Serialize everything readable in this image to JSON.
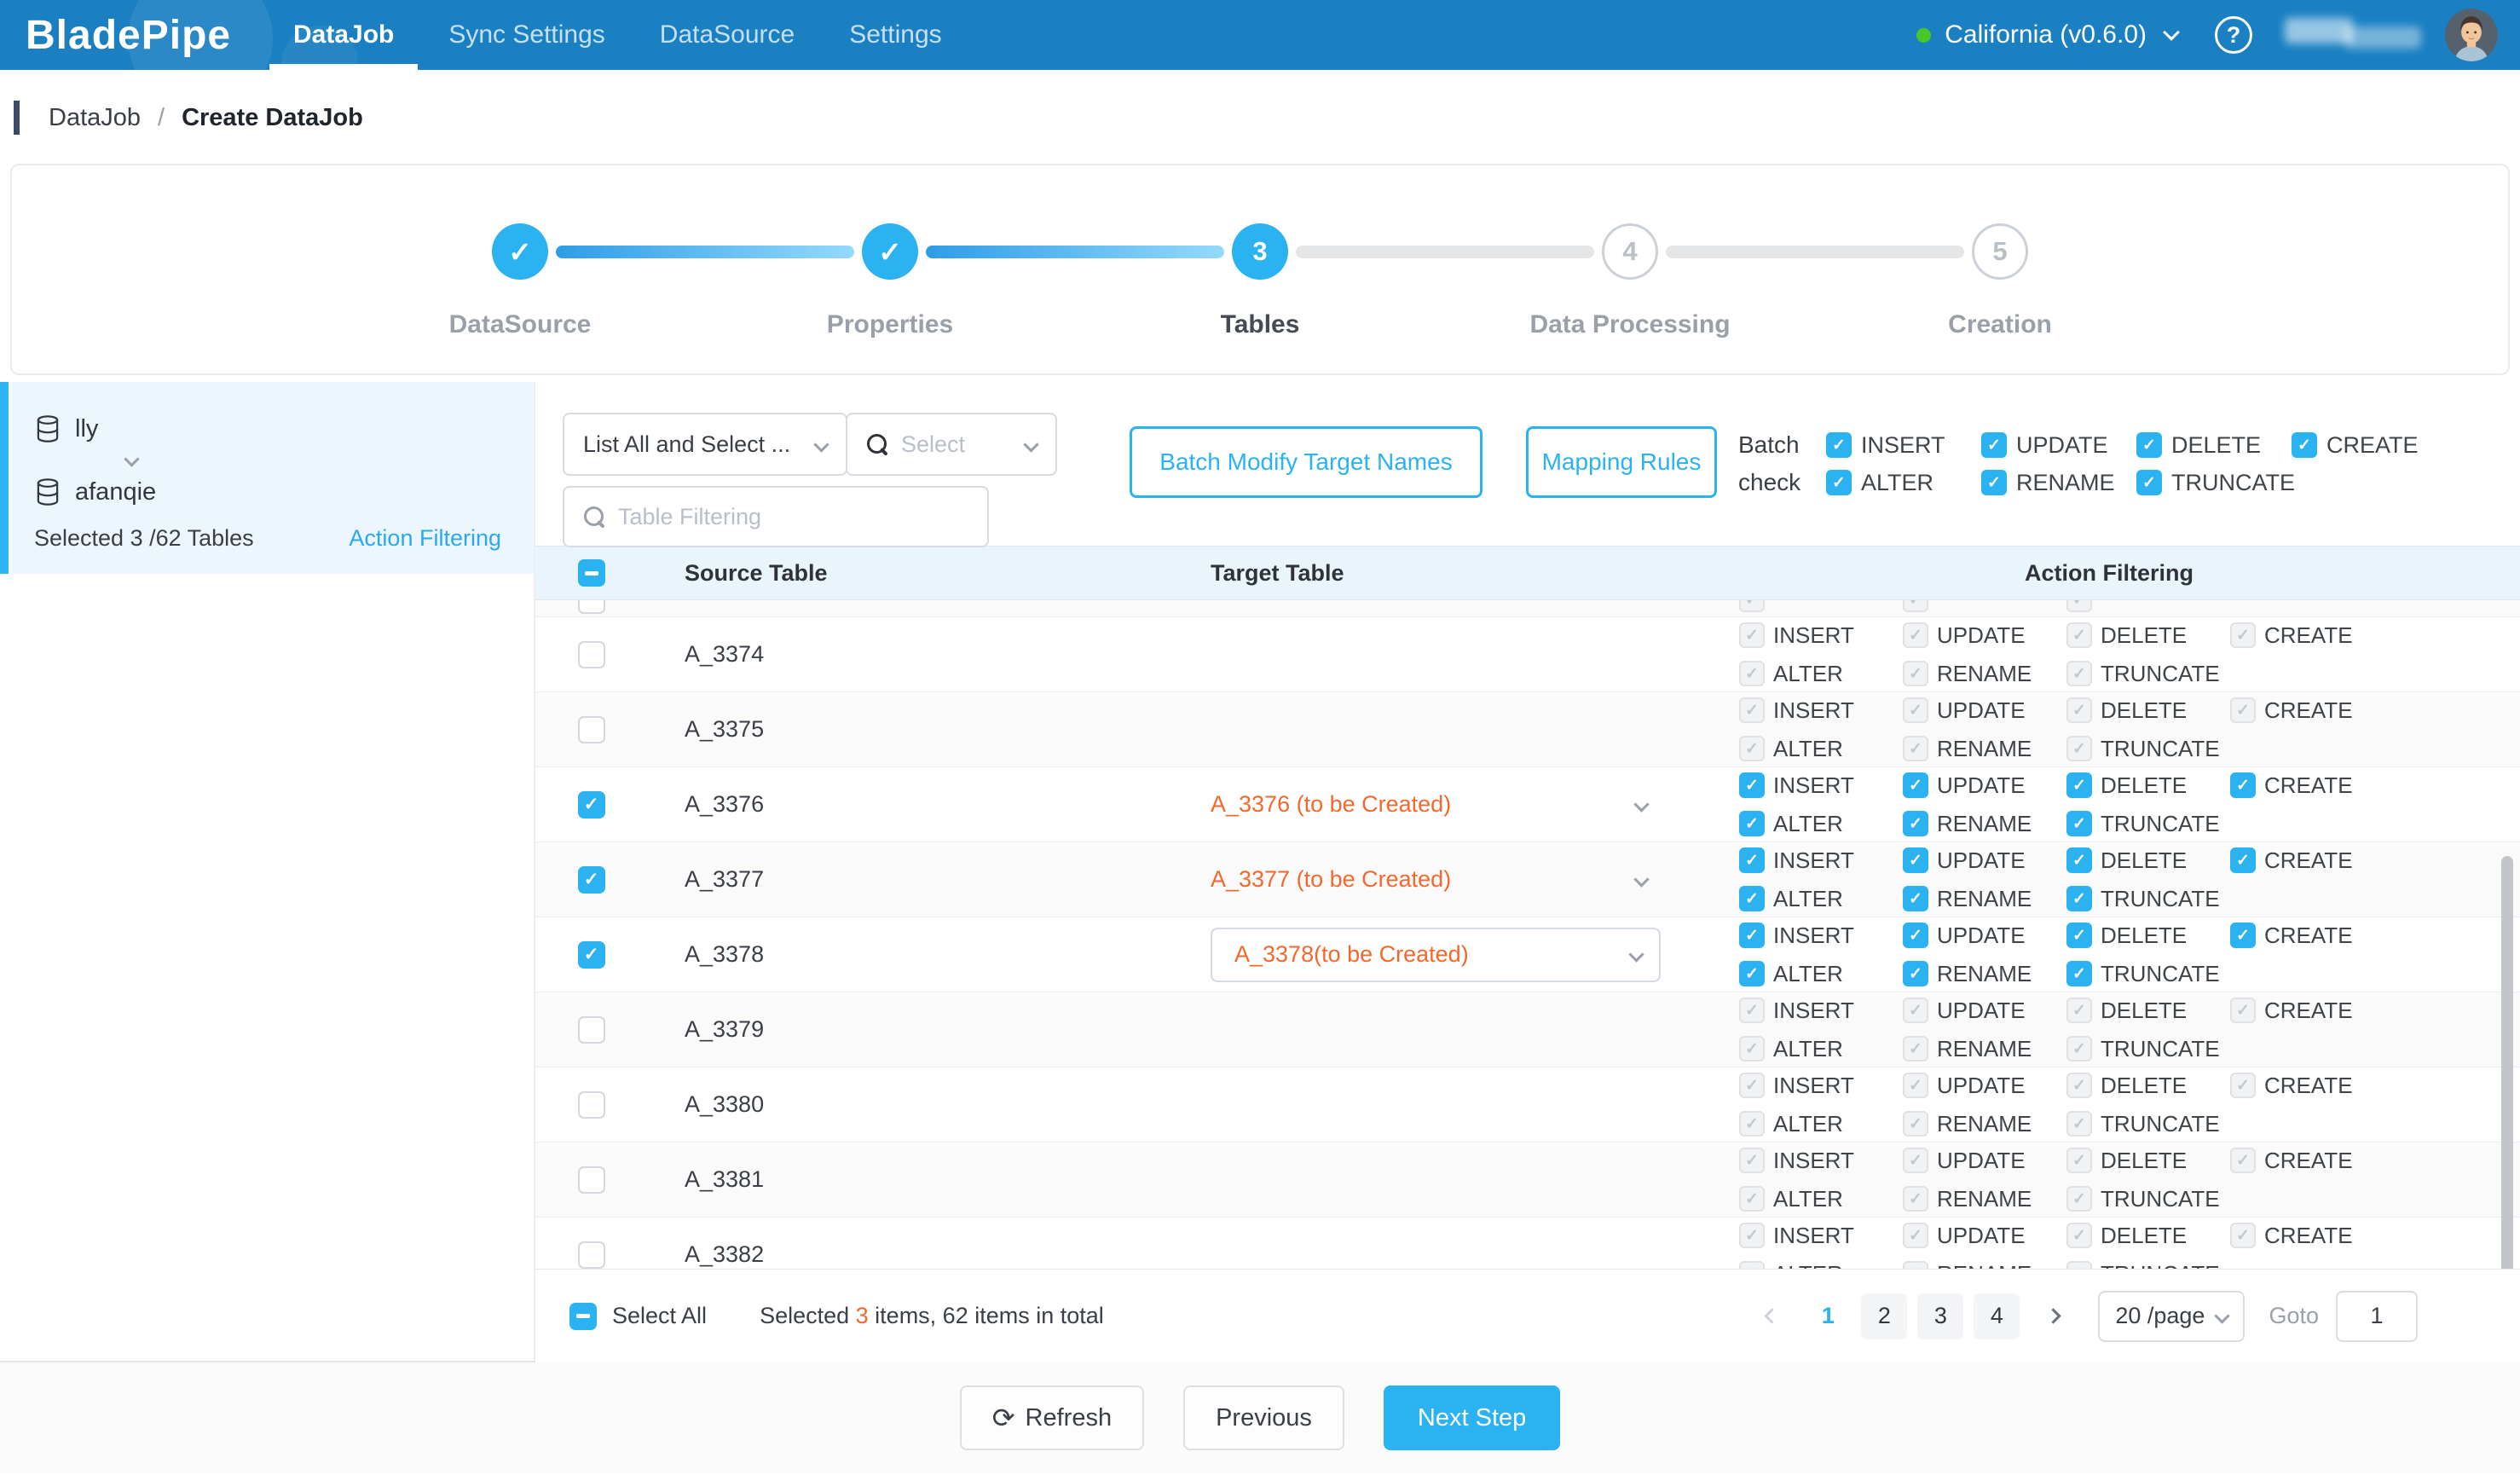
{
  "nav": {
    "brand": "BladePipe",
    "items": [
      {
        "label": "DataJob",
        "active": true
      },
      {
        "label": "Sync Settings",
        "active": false
      },
      {
        "label": "DataSource",
        "active": false
      },
      {
        "label": "Settings",
        "active": false
      }
    ],
    "env": "California (v0.6.0)",
    "help": "?"
  },
  "breadcrumb": {
    "parent": "DataJob",
    "sep": "/",
    "current": "Create DataJob"
  },
  "stepper": {
    "steps": [
      {
        "label": "DataSource",
        "state": "done"
      },
      {
        "label": "Properties",
        "state": "done"
      },
      {
        "label": "Tables",
        "state": "active",
        "num": "3"
      },
      {
        "label": "Data Processing",
        "state": "pending",
        "num": "4"
      },
      {
        "label": "Creation",
        "state": "pending",
        "num": "5"
      }
    ]
  },
  "sidebar": {
    "source_schema": "lly",
    "target_schema": "afanqie",
    "selection_summary": "Selected 3 /62 Tables",
    "action_filtering_link": "Action Filtering"
  },
  "toolbar": {
    "list_mode": "List All and Select ...",
    "select_placeholder": "Select",
    "filter_placeholder": "Table Filtering",
    "batch_modify": "Batch Modify Target Names",
    "mapping_rules": "Mapping Rules",
    "batch_check_line1": "Batch",
    "batch_check_line2": "check",
    "actions_row1": [
      "INSERT",
      "UPDATE",
      "DELETE",
      "CREATE"
    ],
    "actions_row2": [
      "ALTER",
      "RENAME",
      "TRUNCATE"
    ]
  },
  "table": {
    "headers": {
      "source": "Source Table",
      "target": "Target Table",
      "actions": "Action Filtering"
    },
    "rows": [
      {
        "source": "A_3374",
        "checked": false,
        "target": "",
        "target_style": "none"
      },
      {
        "source": "A_3375",
        "checked": false,
        "target": "",
        "target_style": "none"
      },
      {
        "source": "A_3376",
        "checked": true,
        "target": "A_3376 (to be Created)",
        "target_style": "plain"
      },
      {
        "source": "A_3377",
        "checked": true,
        "target": "A_3377 (to be Created)",
        "target_style": "plain"
      },
      {
        "source": "A_3378",
        "checked": true,
        "target": "A_3378(to be Created)",
        "target_style": "boxed"
      },
      {
        "source": "A_3379",
        "checked": false,
        "target": "",
        "target_style": "none"
      },
      {
        "source": "A_3380",
        "checked": false,
        "target": "",
        "target_style": "none"
      },
      {
        "source": "A_3381",
        "checked": false,
        "target": "",
        "target_style": "none"
      },
      {
        "source": "A_3382",
        "checked": false,
        "target": "",
        "target_style": "none"
      }
    ]
  },
  "footer": {
    "select_all": "Select All",
    "summary_prefix": "Selected ",
    "summary_count": "3",
    "summary_suffix": " items, 62 items in total",
    "pages": [
      "1",
      "2",
      "3",
      "4"
    ],
    "current_page": "1",
    "page_size": "20 /page",
    "goto_label": "Goto",
    "goto_value": "1"
  },
  "actions_bar": {
    "refresh": "Refresh",
    "previous": "Previous",
    "next": "Next Step"
  },
  "colors": {
    "nav_blue": "#1a80c2",
    "brand_blue": "#2bb2f1",
    "accent_orange": "#f4682e",
    "status_green": "#49c628"
  }
}
